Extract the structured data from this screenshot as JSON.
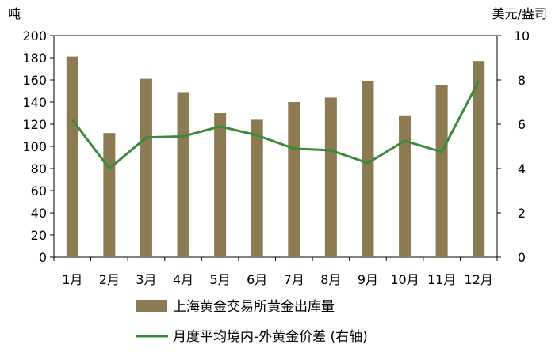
{
  "chart_data": {
    "type": "bar",
    "categories": [
      "1月",
      "2月",
      "3月",
      "4月",
      "5月",
      "6月",
      "7月",
      "8月",
      "9月",
      "10月",
      "11月",
      "12月"
    ],
    "y_left": {
      "unit": "吨",
      "ylim": [
        0,
        200
      ],
      "ticks": [
        0,
        20,
        40,
        60,
        80,
        100,
        120,
        140,
        160,
        180,
        200
      ]
    },
    "y_right": {
      "unit": "美元/盎司",
      "ylim": [
        0,
        10
      ],
      "ticks": [
        0,
        2,
        4,
        6,
        8,
        10
      ]
    },
    "series": [
      {
        "name": "上海黄金交易所黄金出库量",
        "type": "bar",
        "axis": "left",
        "color": "#8c7a52",
        "values": [
          181,
          112,
          161,
          149,
          130,
          124,
          140,
          144,
          159,
          128,
          155,
          177
        ]
      },
      {
        "name": "月度平均境内-外黄金价差 (右轴)",
        "type": "line",
        "axis": "right",
        "color": "#3a8a3c",
        "values": [
          6.2,
          4.0,
          5.4,
          5.45,
          5.9,
          5.5,
          4.9,
          4.82,
          4.25,
          5.25,
          4.75,
          7.95
        ]
      }
    ],
    "grid": false,
    "legend": "bottom"
  }
}
